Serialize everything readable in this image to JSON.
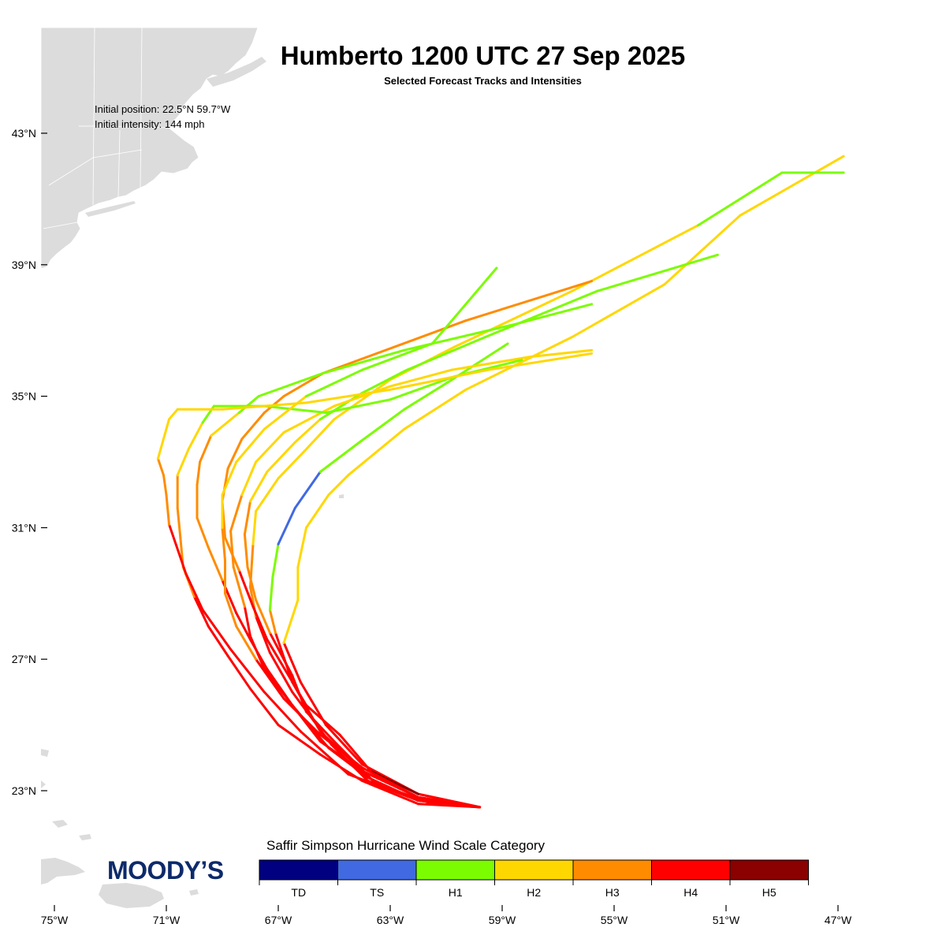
{
  "title": "Humberto 1200 UTC 27 Sep 2025",
  "subtitle": "Selected Forecast Tracks and Intensities",
  "initial_position": "Initial position: 22.5°N 59.7°W",
  "initial_intensity": "Initial intensity: 144 mph",
  "logo": "MOODY’S",
  "legend": {
    "title": "Saffir Simpson Hurricane Wind Scale Category",
    "categories": [
      {
        "label": "TD",
        "color": "#000080"
      },
      {
        "label": "TS",
        "color": "#4169e1"
      },
      {
        "label": "H1",
        "color": "#7cfc00"
      },
      {
        "label": "H2",
        "color": "#ffd700"
      },
      {
        "label": "H3",
        "color": "#ff8c00"
      },
      {
        "label": "H4",
        "color": "#ff0000"
      },
      {
        "label": "H5",
        "color": "#8b0000"
      }
    ]
  },
  "axes": {
    "lon_ticks": [
      "75°W",
      "71°W",
      "67°W",
      "63°W",
      "59°W",
      "55°W",
      "51°W",
      "47°W"
    ],
    "lat_ticks": [
      "43°N",
      "39°N",
      "35°N",
      "31°N",
      "27°N",
      "23°N"
    ]
  },
  "land_color": "#dcdcdc",
  "tracks": [
    {
      "points": [
        [
          -59.8,
          22.5,
          "H4"
        ],
        [
          -62.0,
          22.8,
          "H4"
        ],
        [
          -64.0,
          23.6,
          "H4"
        ],
        [
          -65.5,
          24.8,
          "H4"
        ],
        [
          -66.5,
          26.3,
          "H4"
        ],
        [
          -67.1,
          27.8,
          "H4"
        ],
        [
          -67.3,
          28.5,
          "H3"
        ],
        [
          -67.2,
          29.5,
          "H1"
        ],
        [
          -67.0,
          30.5,
          "H1"
        ],
        [
          -66.4,
          31.6,
          "TS"
        ],
        [
          -65.5,
          32.7,
          "TS"
        ],
        [
          -64.1,
          33.6,
          "H1"
        ],
        [
          -62.5,
          34.6,
          "H1"
        ],
        [
          -60.8,
          35.5,
          "H1"
        ],
        [
          -58.8,
          36.6,
          "H1"
        ]
      ]
    },
    {
      "points": [
        [
          -59.8,
          22.5,
          "H4"
        ],
        [
          -62.0,
          22.9,
          "H4"
        ],
        [
          -64.0,
          23.8,
          "H4"
        ],
        [
          -65.3,
          25.0,
          "H4"
        ],
        [
          -66.2,
          26.3,
          "H4"
        ],
        [
          -66.8,
          27.5,
          "H4"
        ],
        [
          -66.3,
          28.8,
          "H2"
        ],
        [
          -66.3,
          29.8,
          "H2"
        ],
        [
          -66.0,
          31.0,
          "H2"
        ],
        [
          -65.2,
          32.0,
          "H2"
        ],
        [
          -64.5,
          32.6,
          "H2"
        ],
        [
          -62.5,
          34.0,
          "H2"
        ],
        [
          -60.3,
          35.2,
          "H2"
        ],
        [
          -56.5,
          36.8,
          "H2"
        ],
        [
          -53.2,
          38.4,
          "H2"
        ],
        [
          -50.5,
          40.5,
          "H2"
        ],
        [
          -46.8,
          42.3,
          "H2"
        ]
      ]
    },
    {
      "points": [
        [
          -59.8,
          22.5,
          "H4"
        ],
        [
          -61.8,
          22.7,
          "H4"
        ],
        [
          -63.8,
          23.3,
          "H4"
        ],
        [
          -65.1,
          24.4,
          "H4"
        ],
        [
          -66.5,
          26.0,
          "H4"
        ],
        [
          -67.3,
          27.2,
          "H4"
        ],
        [
          -67.8,
          28.3,
          "H4"
        ],
        [
          -68.0,
          29.2,
          "H3"
        ],
        [
          -67.9,
          30.5,
          "H3"
        ],
        [
          -67.8,
          31.5,
          "H2"
        ],
        [
          -67.0,
          32.5,
          "H2"
        ],
        [
          -66.1,
          33.3,
          "H2"
        ],
        [
          -65.0,
          34.3,
          "H2"
        ],
        [
          -63.0,
          35.5,
          "H2"
        ],
        [
          -60.7,
          36.5,
          "H2"
        ],
        [
          -56.5,
          38.2,
          "H2"
        ],
        [
          -52.0,
          40.2,
          "H2"
        ],
        [
          -49.0,
          41.8,
          "H1"
        ],
        [
          -46.8,
          41.8,
          "H1"
        ]
      ]
    },
    {
      "points": [
        [
          -59.8,
          22.5,
          "H4"
        ],
        [
          -61.5,
          22.6,
          "H4"
        ],
        [
          -63.5,
          23.2,
          "H4"
        ],
        [
          -65.0,
          24.5,
          "H4"
        ],
        [
          -66.0,
          25.4,
          "H4"
        ],
        [
          -66.5,
          26.5,
          "H4"
        ],
        [
          -67.3,
          27.8,
          "H4"
        ],
        [
          -67.8,
          28.8,
          "H3"
        ],
        [
          -68.1,
          29.8,
          "H3"
        ],
        [
          -68.2,
          30.8,
          "H3"
        ],
        [
          -68.0,
          31.8,
          "H3"
        ],
        [
          -67.4,
          32.7,
          "H2"
        ],
        [
          -66.4,
          33.6,
          "H2"
        ],
        [
          -65.5,
          34.3,
          "H2"
        ],
        [
          -64.0,
          35.1,
          "H1"
        ],
        [
          -62.4,
          35.8,
          "H1"
        ],
        [
          -59.6,
          36.8,
          "H1"
        ],
        [
          -55.6,
          38.2,
          "H1"
        ],
        [
          -51.3,
          39.3,
          "H1"
        ]
      ]
    },
    {
      "points": [
        [
          -59.8,
          22.5,
          "H4"
        ],
        [
          -62.0,
          22.8,
          "H4"
        ],
        [
          -64.0,
          23.6,
          "H4"
        ],
        [
          -65.5,
          24.5,
          "H4"
        ],
        [
          -66.5,
          25.6,
          "H4"
        ],
        [
          -67.5,
          26.7,
          "H4"
        ],
        [
          -68.0,
          27.7,
          "H4"
        ],
        [
          -68.2,
          28.6,
          "H4"
        ],
        [
          -68.6,
          29.8,
          "H3"
        ],
        [
          -68.7,
          30.9,
          "H3"
        ],
        [
          -68.3,
          32.0,
          "H3"
        ],
        [
          -67.8,
          33.0,
          "H2"
        ],
        [
          -66.8,
          33.9,
          "H2"
        ],
        [
          -65.0,
          34.7,
          "H2"
        ],
        [
          -63.0,
          35.3,
          "H2"
        ],
        [
          -60.8,
          35.8,
          "H2"
        ],
        [
          -58.0,
          36.2,
          "H2"
        ],
        [
          -55.8,
          36.4,
          "H2"
        ]
      ]
    },
    {
      "points": [
        [
          -59.8,
          22.5,
          "H4"
        ],
        [
          -62.0,
          22.9,
          "H4"
        ],
        [
          -63.7,
          23.6,
          "H5"
        ],
        [
          -64.8,
          24.7,
          "H4"
        ],
        [
          -66.0,
          25.6,
          "H4"
        ],
        [
          -66.7,
          26.6,
          "H4"
        ],
        [
          -67.4,
          27.6,
          "H4"
        ],
        [
          -67.9,
          28.6,
          "H4"
        ],
        [
          -68.4,
          29.7,
          "H4"
        ],
        [
          -68.9,
          30.7,
          "H3"
        ],
        [
          -69.0,
          31.8,
          "H3"
        ],
        [
          -68.8,
          32.8,
          "H3"
        ],
        [
          -68.3,
          33.7,
          "H3"
        ],
        [
          -67.5,
          34.5,
          "H3"
        ],
        [
          -66.8,
          35.0,
          "H3"
        ],
        [
          -65.4,
          35.7,
          "H3"
        ],
        [
          -60.3,
          37.3,
          "H3"
        ],
        [
          -55.8,
          38.5,
          "H3"
        ]
      ]
    },
    {
      "points": [
        [
          -59.8,
          22.5,
          "H4"
        ],
        [
          -62.0,
          22.7,
          "H4"
        ],
        [
          -63.8,
          23.4,
          "H4"
        ],
        [
          -65.2,
          24.3,
          "H4"
        ],
        [
          -66.5,
          25.6,
          "H4"
        ],
        [
          -67.4,
          26.7,
          "H4"
        ],
        [
          -68.0,
          27.6,
          "H4"
        ],
        [
          -68.5,
          28.4,
          "H4"
        ],
        [
          -69.0,
          29.4,
          "H4"
        ],
        [
          -69.5,
          30.4,
          "H3"
        ],
        [
          -69.9,
          31.3,
          "H3"
        ],
        [
          -69.9,
          32.3,
          "H3"
        ],
        [
          -69.8,
          33.0,
          "H3"
        ],
        [
          -69.4,
          33.8,
          "H3"
        ],
        [
          -68.4,
          34.5,
          "H2"
        ],
        [
          -67.7,
          35.0,
          "H1"
        ],
        [
          -65.4,
          35.7,
          "H1"
        ],
        [
          -62.5,
          36.4,
          "H1"
        ],
        [
          -58.5,
          37.2,
          "H1"
        ],
        [
          -55.8,
          37.8,
          "H1"
        ]
      ]
    },
    {
      "points": [
        [
          -59.8,
          22.5,
          "H4"
        ],
        [
          -62.0,
          22.6,
          "H4"
        ],
        [
          -64.0,
          23.3,
          "H4"
        ],
        [
          -65.5,
          24.1,
          "H4"
        ],
        [
          -67.0,
          25.0,
          "H4"
        ],
        [
          -68.0,
          26.1,
          "H4"
        ],
        [
          -68.8,
          27.1,
          "H4"
        ],
        [
          -69.5,
          28.0,
          "H4"
        ],
        [
          -70.0,
          28.9,
          "H4"
        ],
        [
          -70.4,
          29.8,
          "H3"
        ],
        [
          -70.5,
          30.7,
          "H3"
        ],
        [
          -70.6,
          31.6,
          "H3"
        ],
        [
          -70.6,
          32.6,
          "H3"
        ],
        [
          -70.2,
          33.4,
          "H2"
        ],
        [
          -69.7,
          34.2,
          "H2"
        ],
        [
          -69.3,
          34.7,
          "H1"
        ],
        [
          -67.5,
          34.7,
          "H1"
        ],
        [
          -65.3,
          34.5,
          "H1"
        ],
        [
          -63.0,
          34.9,
          "H1"
        ],
        [
          -60.7,
          35.6,
          "H1"
        ],
        [
          -58.3,
          36.1,
          "H1"
        ]
      ]
    },
    {
      "points": [
        [
          -59.8,
          22.5,
          "H4"
        ],
        [
          -62.0,
          22.7,
          "H4"
        ],
        [
          -64.5,
          23.5,
          "H4"
        ],
        [
          -66.2,
          24.8,
          "H4"
        ],
        [
          -67.5,
          26.0,
          "H4"
        ],
        [
          -68.7,
          27.3,
          "H4"
        ],
        [
          -69.7,
          28.5,
          "H4"
        ],
        [
          -70.3,
          29.6,
          "H4"
        ],
        [
          -70.9,
          31.1,
          "H4"
        ],
        [
          -71.0,
          32.0,
          "H3"
        ],
        [
          -71.1,
          32.6,
          "H3"
        ],
        [
          -71.3,
          33.1,
          "H3"
        ],
        [
          -70.9,
          34.3,
          "H2"
        ],
        [
          -70.6,
          34.6,
          "H2"
        ],
        [
          -69.0,
          34.6,
          "H2"
        ],
        [
          -66.0,
          34.8,
          "H2"
        ],
        [
          -63.0,
          35.2,
          "H2"
        ],
        [
          -59.5,
          35.8,
          "H2"
        ],
        [
          -55.8,
          36.3,
          "H2"
        ]
      ]
    },
    {
      "points": [
        [
          -59.8,
          22.5,
          "H4"
        ],
        [
          -62.0,
          22.8,
          "H4"
        ],
        [
          -64.0,
          23.7,
          "H4"
        ],
        [
          -65.5,
          24.7,
          "H4"
        ],
        [
          -66.8,
          25.8,
          "H4"
        ],
        [
          -67.8,
          27.0,
          "H4"
        ],
        [
          -68.5,
          28.0,
          "H3"
        ],
        [
          -68.9,
          29.0,
          "H3"
        ],
        [
          -68.9,
          30.0,
          "H3"
        ],
        [
          -69.0,
          31.0,
          "H3"
        ],
        [
          -69.0,
          32.0,
          "H2"
        ],
        [
          -68.5,
          33.0,
          "H2"
        ],
        [
          -67.5,
          34.0,
          "H2"
        ],
        [
          -66.0,
          35.0,
          "H2"
        ],
        [
          -64.0,
          35.8,
          "H1"
        ],
        [
          -61.5,
          36.6,
          "H1"
        ],
        [
          -60.2,
          37.9,
          "H1"
        ],
        [
          -59.2,
          38.9,
          "H1"
        ]
      ]
    }
  ]
}
